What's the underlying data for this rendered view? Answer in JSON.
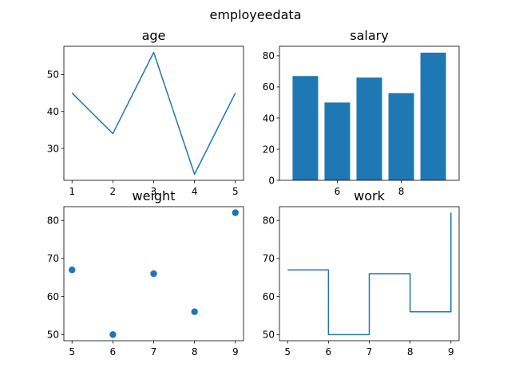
{
  "figure": {
    "suptitle": "employeedata",
    "accent_color": "#1f77b4"
  },
  "chart_data": [
    {
      "type": "line",
      "title": "age",
      "x": [
        1,
        2,
        3,
        4,
        5
      ],
      "y": [
        45,
        34,
        56,
        23,
        45
      ],
      "xlim": [
        0.8,
        5.2
      ],
      "ylim": [
        21.35,
        57.65
      ],
      "xticks": [
        1,
        2,
        3,
        4,
        5
      ],
      "yticks": [
        30,
        40,
        50
      ],
      "xlabel": "",
      "ylabel": "",
      "grid": false
    },
    {
      "type": "bar",
      "title": "salary",
      "x": [
        5,
        6,
        7,
        8,
        9
      ],
      "values": [
        67,
        50,
        66,
        56,
        82
      ],
      "bar_width": 0.8,
      "xlim": [
        4.19,
        9.81
      ],
      "ylim": [
        0,
        86.1
      ],
      "xticks": [
        6,
        8
      ],
      "yticks": [
        0,
        20,
        40,
        60,
        80
      ],
      "xlabel": "",
      "ylabel": "",
      "grid": false
    },
    {
      "type": "scatter",
      "title": "weight",
      "x": [
        5,
        6,
        7,
        8,
        9
      ],
      "y": [
        67,
        50,
        66,
        56,
        82
      ],
      "xlim": [
        4.8,
        9.2
      ],
      "ylim": [
        48.4,
        83.6
      ],
      "xticks": [
        5,
        6,
        7,
        8,
        9
      ],
      "yticks": [
        50,
        60,
        70,
        80
      ],
      "xlabel": "",
      "ylabel": "",
      "grid": false
    },
    {
      "type": "line",
      "drawstyle": "steps-post",
      "title": "work",
      "x": [
        5,
        6,
        7,
        8,
        9
      ],
      "y": [
        67,
        50,
        66,
        56,
        82
      ],
      "xlim": [
        4.8,
        9.2
      ],
      "ylim": [
        48.4,
        83.6
      ],
      "xticks": [
        5,
        6,
        7,
        8,
        9
      ],
      "yticks": [
        50,
        60,
        70,
        80
      ],
      "xlabel": "",
      "ylabel": "",
      "grid": false
    }
  ]
}
